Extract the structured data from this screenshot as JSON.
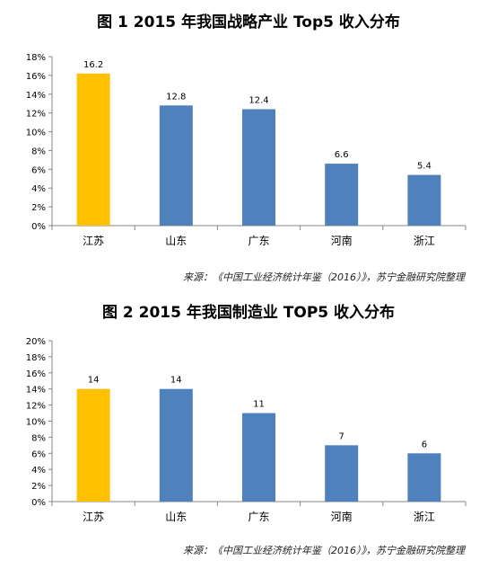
{
  "chart_data": [
    {
      "type": "bar",
      "title": "图 1 2015 年我国战略产业 Top5 收入分布",
      "categories": [
        "江苏",
        "山东",
        "广东",
        "河南",
        "浙江"
      ],
      "values": [
        16.2,
        12.8,
        12.4,
        6.6,
        5.4
      ],
      "value_labels": [
        "16.2",
        "12.8",
        "12.4",
        "6.6",
        "5.4"
      ],
      "ylim": [
        0,
        18
      ],
      "yticks": [
        "0%",
        "2%",
        "4%",
        "6%",
        "8%",
        "10%",
        "12%",
        "14%",
        "16%",
        "18%"
      ],
      "grid": false,
      "legend": "none",
      "source": "来源：《中国工业经济统计年鉴（2016）》，苏宁金融研究院整理"
    },
    {
      "type": "bar",
      "title": "图 2 2015 年我国制造业 TOP5 收入分布",
      "categories": [
        "江苏",
        "山东",
        "广东",
        "河南",
        "浙江"
      ],
      "values": [
        14,
        14,
        11,
        7,
        6
      ],
      "value_labels": [
        "14",
        "14",
        "11",
        "7",
        "6"
      ],
      "ylim": [
        0,
        20
      ],
      "yticks": [
        "0%",
        "2%",
        "4%",
        "6%",
        "8%",
        "10%",
        "12%",
        "14%",
        "16%",
        "18%",
        "20%"
      ],
      "grid": false,
      "legend": "none",
      "source": "来源：《中国工业经济统计年鉴（2016）》，苏宁金融研究院整理"
    }
  ],
  "colors": {
    "highlight": "#FFC000",
    "bar": "#4F81BD",
    "axis": "#868686"
  }
}
